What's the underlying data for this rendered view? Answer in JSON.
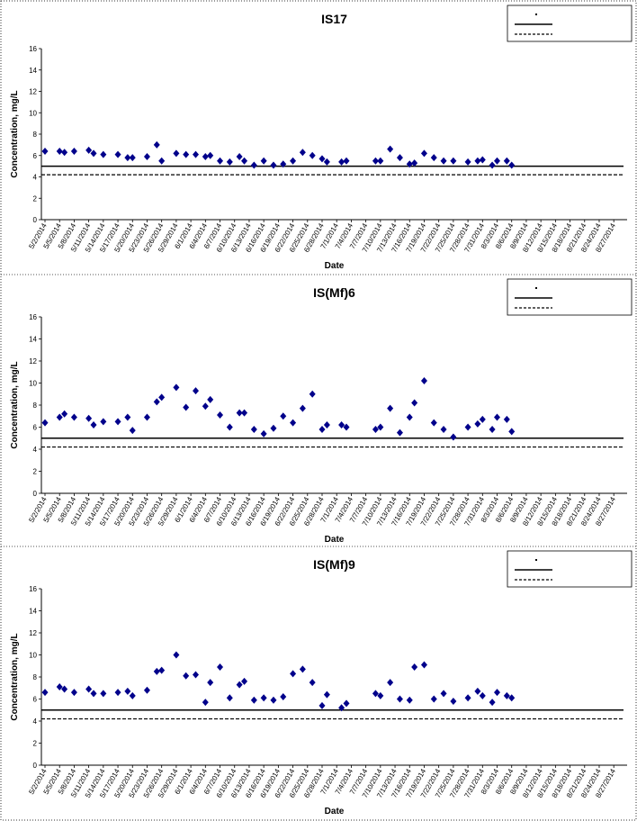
{
  "chart_data": [
    {
      "type": "scatter",
      "title": "IS17",
      "xlabel": "Date",
      "ylabel": "Concentration, mg/L",
      "ylim": [
        0,
        16
      ],
      "yticks": [
        0,
        2,
        4,
        6,
        8,
        10,
        12,
        14,
        16
      ],
      "xlim": [
        "5/2/2014",
        "8/29/2014"
      ],
      "xtick_labels": [
        "5/2/2014",
        "5/5/2014",
        "5/8/2014",
        "5/11/2014",
        "5/14/2014",
        "5/17/2014",
        "5/20/2014",
        "5/23/2014",
        "5/26/2014",
        "5/29/2014",
        "6/1/2014",
        "6/4/2014",
        "6/7/2014",
        "6/10/2014",
        "6/13/2014",
        "6/16/2014",
        "6/19/2014",
        "6/22/2014",
        "6/25/2014",
        "6/28/2014",
        "7/1/2014",
        "7/4/2014",
        "7/7/2014",
        "7/10/2014",
        "7/13/2014",
        "7/16/2014",
        "7/19/2014",
        "7/22/2014",
        "7/25/2014",
        "7/28/2014",
        "7/31/2014",
        "8/3/2014",
        "8/6/2014",
        "8/9/2014",
        "8/12/2014",
        "8/15/2014",
        "8/18/2014",
        "8/21/2014",
        "8/24/2014",
        "8/27/2014"
      ],
      "legend_position": "top-right",
      "reference_lines": [
        {
          "style": "solid",
          "y": 5.0
        },
        {
          "style": "dashed",
          "y": 4.2
        }
      ],
      "series": [
        {
          "color": "#00008B",
          "marker": "diamond",
          "points": [
            [
              "5/2/2014",
              6.4
            ],
            [
              "5/5/2014",
              6.4
            ],
            [
              "5/6/2014",
              6.3
            ],
            [
              "5/8/2014",
              6.4
            ],
            [
              "5/11/2014",
              6.5
            ],
            [
              "5/12/2014",
              6.2
            ],
            [
              "5/14/2014",
              6.1
            ],
            [
              "5/17/2014",
              6.1
            ],
            [
              "5/19/2014",
              5.8
            ],
            [
              "5/20/2014",
              5.8
            ],
            [
              "5/23/2014",
              5.9
            ],
            [
              "5/25/2014",
              7.0
            ],
            [
              "5/26/2014",
              5.5
            ],
            [
              "5/29/2014",
              6.2
            ],
            [
              "5/31/2014",
              6.1
            ],
            [
              "6/2/2014",
              6.1
            ],
            [
              "6/4/2014",
              5.9
            ],
            [
              "6/5/2014",
              6.0
            ],
            [
              "6/7/2014",
              5.5
            ],
            [
              "6/9/2014",
              5.4
            ],
            [
              "6/11/2014",
              5.9
            ],
            [
              "6/12/2014",
              5.5
            ],
            [
              "6/14/2014",
              5.1
            ],
            [
              "6/16/2014",
              5.5
            ],
            [
              "6/18/2014",
              5.1
            ],
            [
              "6/20/2014",
              5.2
            ],
            [
              "6/22/2014",
              5.5
            ],
            [
              "6/24/2014",
              6.3
            ],
            [
              "6/26/2014",
              6.0
            ],
            [
              "6/28/2014",
              5.7
            ],
            [
              "6/29/2014",
              5.4
            ],
            [
              "7/2/2014",
              5.4
            ],
            [
              "7/3/2014",
              5.5
            ],
            [
              "7/9/2014",
              5.5
            ],
            [
              "7/10/2014",
              5.5
            ],
            [
              "7/12/2014",
              6.6
            ],
            [
              "7/14/2014",
              5.8
            ],
            [
              "7/16/2014",
              5.2
            ],
            [
              "7/17/2014",
              5.3
            ],
            [
              "7/19/2014",
              6.2
            ],
            [
              "7/21/2014",
              5.8
            ],
            [
              "7/23/2014",
              5.5
            ],
            [
              "7/25/2014",
              5.5
            ],
            [
              "7/28/2014",
              5.4
            ],
            [
              "7/30/2014",
              5.5
            ],
            [
              "7/31/2014",
              5.6
            ],
            [
              "8/2/2014",
              5.1
            ],
            [
              "8/3/2014",
              5.5
            ],
            [
              "8/5/2014",
              5.5
            ],
            [
              "8/6/2014",
              5.1
            ]
          ]
        }
      ]
    },
    {
      "type": "scatter",
      "title": "IS(Mf)6",
      "xlabel": "Date",
      "ylabel": "Concentration, mg/L",
      "ylim": [
        0,
        16
      ],
      "yticks": [
        0,
        2,
        4,
        6,
        8,
        10,
        12,
        14,
        16
      ],
      "xlim": [
        "5/2/2014",
        "8/29/2014"
      ],
      "xtick_labels": [
        "5/2/2014",
        "5/5/2014",
        "5/8/2014",
        "5/11/2014",
        "5/14/2014",
        "5/17/2014",
        "5/20/2014",
        "5/23/2014",
        "5/26/2014",
        "5/29/2014",
        "6/1/2014",
        "6/4/2014",
        "6/7/2014",
        "6/10/2014",
        "6/13/2014",
        "6/16/2014",
        "6/19/2014",
        "6/22/2014",
        "6/25/2014",
        "6/28/2014",
        "7/1/2014",
        "7/4/2014",
        "7/7/2014",
        "7/10/2014",
        "7/13/2014",
        "7/16/2014",
        "7/19/2014",
        "7/22/2014",
        "7/25/2014",
        "7/28/2014",
        "7/31/2014",
        "8/3/2014",
        "8/6/2014",
        "8/9/2014",
        "8/12/2014",
        "8/15/2014",
        "8/18/2014",
        "8/21/2014",
        "8/24/2014",
        "8/27/2014"
      ],
      "legend_position": "top-right",
      "reference_lines": [
        {
          "style": "solid",
          "y": 5.0
        },
        {
          "style": "dashed",
          "y": 4.2
        }
      ],
      "series": [
        {
          "color": "#00008B",
          "marker": "diamond",
          "points": [
            [
              "5/2/2014",
              6.4
            ],
            [
              "5/5/2014",
              6.9
            ],
            [
              "5/6/2014",
              7.2
            ],
            [
              "5/8/2014",
              6.9
            ],
            [
              "5/11/2014",
              6.8
            ],
            [
              "5/12/2014",
              6.2
            ],
            [
              "5/14/2014",
              6.5
            ],
            [
              "5/17/2014",
              6.5
            ],
            [
              "5/19/2014",
              6.9
            ],
            [
              "5/20/2014",
              5.7
            ],
            [
              "5/23/2014",
              6.9
            ],
            [
              "5/25/2014",
              8.3
            ],
            [
              "5/26/2014",
              8.7
            ],
            [
              "5/29/2014",
              9.6
            ],
            [
              "5/31/2014",
              7.8
            ],
            [
              "6/2/2014",
              9.3
            ],
            [
              "6/4/2014",
              7.9
            ],
            [
              "6/5/2014",
              8.5
            ],
            [
              "6/7/2014",
              7.1
            ],
            [
              "6/9/2014",
              6.0
            ],
            [
              "6/11/2014",
              7.3
            ],
            [
              "6/12/2014",
              7.3
            ],
            [
              "6/14/2014",
              5.8
            ],
            [
              "6/16/2014",
              5.4
            ],
            [
              "6/18/2014",
              5.9
            ],
            [
              "6/20/2014",
              7.0
            ],
            [
              "6/22/2014",
              6.4
            ],
            [
              "6/24/2014",
              7.7
            ],
            [
              "6/26/2014",
              9.0
            ],
            [
              "6/28/2014",
              5.8
            ],
            [
              "6/29/2014",
              6.2
            ],
            [
              "7/2/2014",
              6.2
            ],
            [
              "7/3/2014",
              6.0
            ],
            [
              "7/9/2014",
              5.8
            ],
            [
              "7/10/2014",
              6.0
            ],
            [
              "7/12/2014",
              7.7
            ],
            [
              "7/14/2014",
              5.5
            ],
            [
              "7/16/2014",
              6.9
            ],
            [
              "7/17/2014",
              8.2
            ],
            [
              "7/19/2014",
              10.2
            ],
            [
              "7/21/2014",
              6.4
            ],
            [
              "7/23/2014",
              5.8
            ],
            [
              "7/25/2014",
              5.1
            ],
            [
              "7/28/2014",
              6.0
            ],
            [
              "7/30/2014",
              6.3
            ],
            [
              "7/31/2014",
              6.7
            ],
            [
              "8/2/2014",
              5.8
            ],
            [
              "8/3/2014",
              6.9
            ],
            [
              "8/5/2014",
              6.7
            ],
            [
              "8/6/2014",
              5.6
            ]
          ]
        }
      ]
    },
    {
      "type": "scatter",
      "title": "IS(Mf)9",
      "xlabel": "Date",
      "ylabel": "Concentration, mg/L",
      "ylim": [
        0,
        16
      ],
      "yticks": [
        0,
        2,
        4,
        6,
        8,
        10,
        12,
        14,
        16
      ],
      "xlim": [
        "5/2/2014",
        "8/29/2014"
      ],
      "xtick_labels": [
        "5/2/2014",
        "5/5/2014",
        "5/8/2014",
        "5/11/2014",
        "5/14/2014",
        "5/17/2014",
        "5/20/2014",
        "5/23/2014",
        "5/26/2014",
        "5/29/2014",
        "6/1/2014",
        "6/4/2014",
        "6/7/2014",
        "6/10/2014",
        "6/13/2014",
        "6/16/2014",
        "6/19/2014",
        "6/22/2014",
        "6/25/2014",
        "6/28/2014",
        "7/1/2014",
        "7/4/2014",
        "7/7/2014",
        "7/10/2014",
        "7/13/2014",
        "7/16/2014",
        "7/19/2014",
        "7/22/2014",
        "7/25/2014",
        "7/28/2014",
        "7/31/2014",
        "8/3/2014",
        "8/6/2014",
        "8/9/2014",
        "8/12/2014",
        "8/15/2014",
        "8/18/2014",
        "8/21/2014",
        "8/24/2014",
        "8/27/2014"
      ],
      "legend_position": "top-right",
      "reference_lines": [
        {
          "style": "solid",
          "y": 5.0
        },
        {
          "style": "dashed",
          "y": 4.2
        }
      ],
      "series": [
        {
          "color": "#00008B",
          "marker": "diamond",
          "points": [
            [
              "5/2/2014",
              6.6
            ],
            [
              "5/5/2014",
              7.1
            ],
            [
              "5/6/2014",
              6.9
            ],
            [
              "5/8/2014",
              6.6
            ],
            [
              "5/11/2014",
              6.9
            ],
            [
              "5/12/2014",
              6.5
            ],
            [
              "5/14/2014",
              6.5
            ],
            [
              "5/17/2014",
              6.6
            ],
            [
              "5/19/2014",
              6.7
            ],
            [
              "5/20/2014",
              6.3
            ],
            [
              "5/23/2014",
              6.8
            ],
            [
              "5/25/2014",
              8.5
            ],
            [
              "5/26/2014",
              8.6
            ],
            [
              "5/29/2014",
              10.0
            ],
            [
              "5/31/2014",
              8.1
            ],
            [
              "6/2/2014",
              8.2
            ],
            [
              "6/4/2014",
              5.7
            ],
            [
              "6/5/2014",
              7.5
            ],
            [
              "6/7/2014",
              8.9
            ],
            [
              "6/9/2014",
              6.1
            ],
            [
              "6/11/2014",
              7.3
            ],
            [
              "6/12/2014",
              7.6
            ],
            [
              "6/14/2014",
              5.9
            ],
            [
              "6/16/2014",
              6.1
            ],
            [
              "6/18/2014",
              5.9
            ],
            [
              "6/20/2014",
              6.2
            ],
            [
              "6/22/2014",
              8.3
            ],
            [
              "6/24/2014",
              8.7
            ],
            [
              "6/26/2014",
              7.5
            ],
            [
              "6/28/2014",
              5.4
            ],
            [
              "6/29/2014",
              6.4
            ],
            [
              "7/2/2014",
              5.2
            ],
            [
              "7/3/2014",
              5.6
            ],
            [
              "7/9/2014",
              6.5
            ],
            [
              "7/10/2014",
              6.3
            ],
            [
              "7/12/2014",
              7.5
            ],
            [
              "7/14/2014",
              6.0
            ],
            [
              "7/16/2014",
              5.9
            ],
            [
              "7/17/2014",
              8.9
            ],
            [
              "7/19/2014",
              9.1
            ],
            [
              "7/21/2014",
              6.0
            ],
            [
              "7/23/2014",
              6.5
            ],
            [
              "7/25/2014",
              5.8
            ],
            [
              "7/28/2014",
              6.1
            ],
            [
              "7/30/2014",
              6.7
            ],
            [
              "7/31/2014",
              6.3
            ],
            [
              "8/2/2014",
              5.7
            ],
            [
              "8/3/2014",
              6.6
            ],
            [
              "8/5/2014",
              6.3
            ],
            [
              "8/6/2014",
              6.1
            ]
          ]
        }
      ]
    }
  ]
}
